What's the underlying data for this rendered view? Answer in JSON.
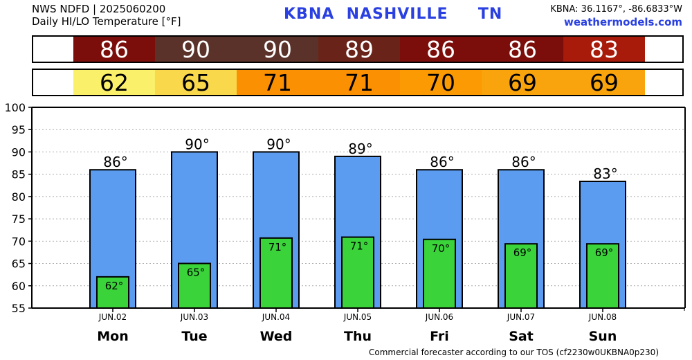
{
  "header": {
    "line1": "NWS NDFD | 2025060200",
    "line2": "Daily HI/LO Temperature [°F]",
    "station": "KBNA  NASHVILLE     TN",
    "coords": "KBNA: 36.1167°, -86.6833°W",
    "site": "weathermodels.com"
  },
  "strips": {
    "hi_values": [
      "86",
      "90",
      "90",
      "89",
      "86",
      "86",
      "83"
    ],
    "hi_colors": [
      "#7b0d0a",
      "#5b3229",
      "#5b3229",
      "#6a2318",
      "#7b0d0a",
      "#7b0d0a",
      "#a81a0a"
    ],
    "lo_values": [
      "62",
      "65",
      "71",
      "71",
      "70",
      "69",
      "69"
    ],
    "lo_colors": [
      "#fbf06a",
      "#fad84c",
      "#fb9002",
      "#fb9002",
      "#fb9a02",
      "#f9a40c",
      "#f9a40c"
    ]
  },
  "footer": "Commercial forecaster according to our TOS (cf2230w0UKBNA0p230)",
  "colors": {
    "hi_bar": "#5b9cf0",
    "lo_bar": "#3ad33a",
    "grid": "#aaaaaa"
  },
  "chart_data": {
    "type": "bar",
    "categories": [
      "Mon",
      "Tue",
      "Wed",
      "Thu",
      "Fri",
      "Sat",
      "Sun"
    ],
    "dates": [
      "JUN.02",
      "JUN.03",
      "JUN.04",
      "JUN.05",
      "JUN.06",
      "JUN.07",
      "JUN.08"
    ],
    "series": [
      {
        "values": [
          86,
          90,
          90,
          89,
          86,
          86,
          83.4
        ],
        "labels": [
          "86°",
          "90°",
          "90°",
          "89°",
          "86°",
          "86°",
          "83°"
        ]
      },
      {
        "values": [
          62,
          65,
          70.7,
          70.9,
          70.4,
          69.4,
          69.4
        ],
        "labels": [
          "62°",
          "65°",
          "71°",
          "71°",
          "70°",
          "69°",
          "69°"
        ]
      }
    ],
    "ylim": [
      55,
      100
    ],
    "yticks": [
      55,
      60,
      65,
      70,
      75,
      80,
      85,
      90,
      95,
      100
    ],
    "grid": "horizontal dashed"
  }
}
